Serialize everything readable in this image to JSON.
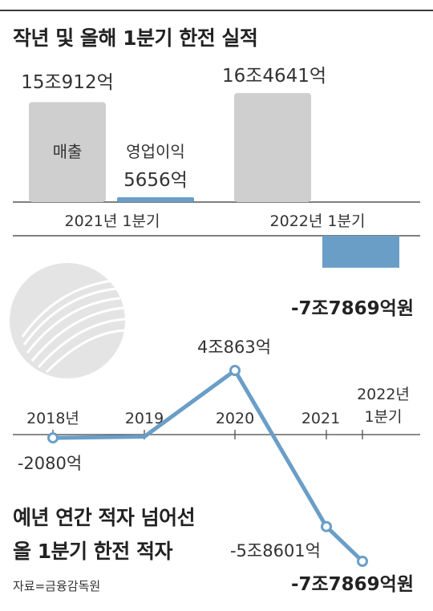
{
  "title": "작년 및 올해 1분기 한전 실적",
  "subtitle_line1": "예년 연간 적자 넘어선",
  "subtitle_line2": "올 1분기 한전 적자",
  "source": "자료=금융감독원",
  "colors": {
    "revenue": "#cfcfcf",
    "profit": "#6a9ec7",
    "line": "#6a9ec7"
  },
  "chart_data": [
    {
      "type": "bar",
      "categories": [
        "2021년 1분기",
        "2022년 1분기"
      ],
      "series": [
        {
          "name": "매출",
          "values": [
            150912,
            164641
          ],
          "labels": [
            "15조912억",
            "16조4641억"
          ]
        },
        {
          "name": "영업이익",
          "values": [
            5656,
            -77869
          ],
          "labels": [
            "5656억",
            "-7조7869억원"
          ]
        }
      ],
      "unit": "억원"
    },
    {
      "type": "line",
      "x": [
        "2018년",
        "2019",
        "2020",
        "2021",
        "2022년 1분기"
      ],
      "values": [
        -2080,
        -1300,
        40863,
        -58601,
        -77869
      ],
      "labels": [
        "-2080억",
        "",
        "4조863억",
        "-5조8601억",
        "-7조7869억원"
      ],
      "unit": "억원"
    }
  ]
}
